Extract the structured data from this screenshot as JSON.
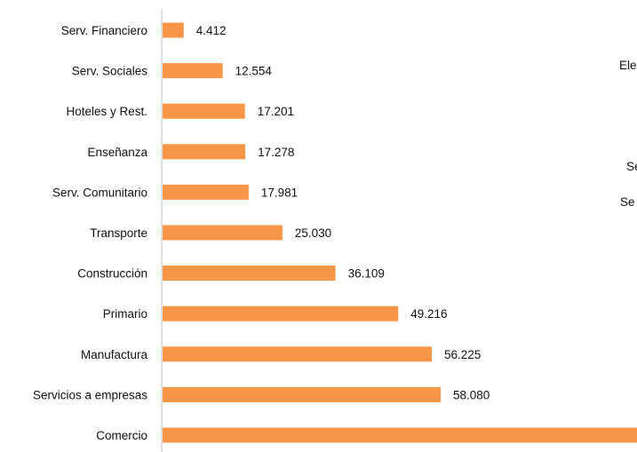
{
  "chart_data": {
    "type": "bar",
    "orientation": "horizontal",
    "categories": [
      "Serv. Financiero",
      "Serv. Sociales",
      "Hoteles y Rest.",
      "Enseñanza",
      "Serv. Comunitario",
      "Transporte",
      "Construcción",
      "Primario",
      "Manufactura",
      "Servicios a empresas",
      "Comercio"
    ],
    "values": [
      4412,
      12554,
      17201,
      17278,
      17981,
      25030,
      36109,
      49216,
      56225,
      58080,
      null
    ],
    "value_labels": [
      "4.412",
      "12.554",
      "17.201",
      "17.278",
      "17.981",
      "25.030",
      "36.109",
      "49.216",
      "56.225",
      "58.080",
      ""
    ],
    "bar_color": "#F79646",
    "legend": false,
    "grid": false
  },
  "cut_text": [
    "Ele",
    "Se",
    "Se"
  ]
}
